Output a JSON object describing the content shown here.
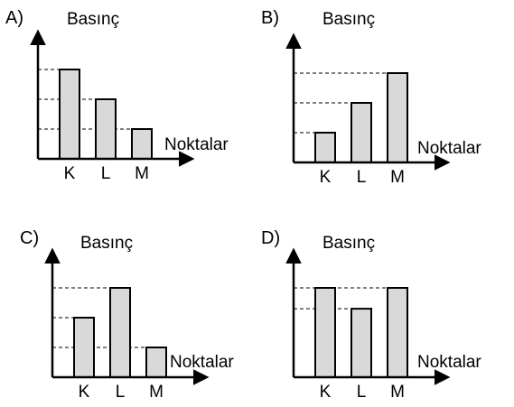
{
  "chart_data": [
    {
      "type": "bar",
      "option": "A)",
      "ylabel": "Basınç",
      "xlabel": "Noktalar",
      "categories": [
        "K",
        "L",
        "M"
      ],
      "values": [
        3,
        2,
        1
      ]
    },
    {
      "type": "bar",
      "option": "B)",
      "ylabel": "Basınç",
      "xlabel": "Noktalar",
      "categories": [
        "K",
        "L",
        "M"
      ],
      "values": [
        1,
        2,
        3
      ]
    },
    {
      "type": "bar",
      "option": "C)",
      "ylabel": "Basınç",
      "xlabel": "Noktalar",
      "categories": [
        "K",
        "L",
        "M"
      ],
      "values": [
        2,
        3,
        1
      ]
    },
    {
      "type": "bar",
      "option": "D)",
      "ylabel": "Basınç",
      "xlabel": "Noktalar",
      "categories": [
        "K",
        "L",
        "M"
      ],
      "values": [
        3,
        2.3,
        3
      ]
    }
  ]
}
